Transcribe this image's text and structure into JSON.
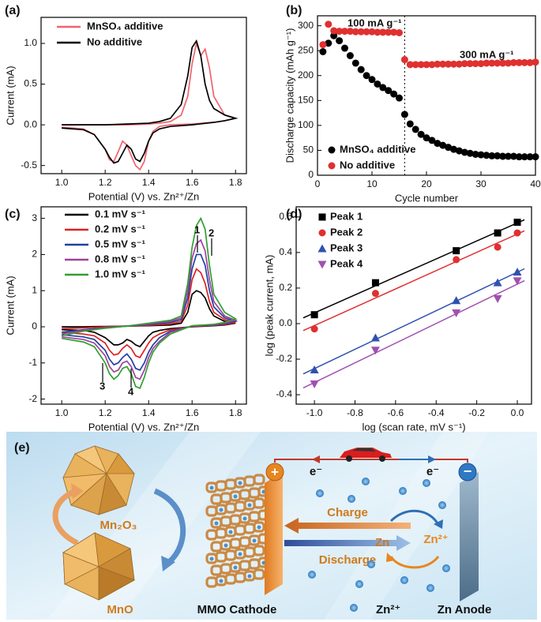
{
  "chart_data": [
    {
      "type": "line",
      "panel_label": "(a)",
      "xlabel": "Potential (V) vs. Zn²⁺/Zn",
      "ylabel": "Current (mA)",
      "xlim": [
        0.905,
        1.85
      ],
      "ylim": [
        -0.6,
        1.32
      ],
      "xticks": [
        {
          "value": 1.0,
          "label": "1.0"
        },
        1.2,
        1.4,
        1.6,
        1.8
      ],
      "yticks": [
        -0.5,
        {
          "value": 0,
          "label": "0.0"
        },
        0.5,
        {
          "value": 1,
          "label": "1.0"
        }
      ],
      "x": [
        1.0,
        1.1,
        1.2,
        1.3,
        1.4,
        1.45,
        1.5,
        1.55,
        1.58,
        1.6,
        1.62,
        1.64,
        1.66,
        1.68,
        1.7,
        1.75,
        1.8,
        1.75,
        1.7,
        1.6,
        1.5,
        1.45,
        1.42,
        1.4,
        1.38,
        1.36,
        1.34,
        1.32,
        1.3,
        1.28,
        1.26,
        1.24,
        1.22,
        1.2,
        1.15,
        1.1,
        1.0
      ],
      "series": [
        {
          "name": "MnSO₄ additive",
          "color": "#f0646e",
          "values": [
            0.0,
            0.0,
            0.0,
            0.0,
            0.01,
            0.02,
            0.04,
            0.12,
            0.35,
            0.75,
            1.0,
            0.85,
            0.93,
            0.7,
            0.35,
            0.12,
            0.08,
            0.05,
            0.03,
            0.01,
            0.0,
            -0.02,
            -0.08,
            -0.2,
            -0.45,
            -0.55,
            -0.5,
            -0.38,
            -0.25,
            -0.2,
            -0.33,
            -0.45,
            -0.43,
            -0.3,
            -0.12,
            -0.05,
            -0.03
          ]
        },
        {
          "name": "No additive",
          "color": "#000000",
          "values": [
            0.0,
            0.0,
            0.0,
            0.01,
            0.02,
            0.04,
            0.08,
            0.25,
            0.6,
            0.95,
            1.03,
            0.85,
            0.5,
            0.3,
            0.2,
            0.12,
            0.08,
            0.05,
            0.03,
            0.0,
            -0.02,
            -0.05,
            -0.1,
            -0.2,
            -0.35,
            -0.45,
            -0.42,
            -0.3,
            -0.25,
            -0.35,
            -0.45,
            -0.47,
            -0.4,
            -0.3,
            -0.12,
            -0.06,
            -0.04
          ]
        }
      ]
    },
    {
      "type": "scatter",
      "panel_label": "(b)",
      "xlabel": "Cycle number",
      "ylabel": "Discharge capacity (mAh g⁻¹)",
      "xlim": [
        0,
        40
      ],
      "ylim": [
        0,
        320
      ],
      "xticks": [
        0,
        10,
        20,
        30,
        40
      ],
      "yticks": [
        0,
        50,
        100,
        150,
        200,
        250,
        300
      ],
      "annotations": [
        "100 mA g⁻¹",
        "300 mA g⁻¹"
      ],
      "x": [
        1,
        2,
        3,
        4,
        5,
        6,
        7,
        8,
        9,
        10,
        11,
        12,
        13,
        14,
        15,
        16,
        17,
        18,
        19,
        20,
        21,
        22,
        23,
        24,
        25,
        26,
        27,
        28,
        29,
        30,
        31,
        32,
        33,
        34,
        35,
        36,
        37,
        38,
        39,
        40
      ],
      "series": [
        {
          "name": "MnSO₄ additive",
          "color": "#000000",
          "values": [
            248,
            265,
            280,
            270,
            255,
            240,
            225,
            212,
            200,
            192,
            183,
            176,
            170,
            163,
            155,
            122,
            103,
            92,
            82,
            75,
            70,
            64,
            60,
            56,
            52,
            49,
            46,
            44,
            42,
            41,
            40,
            39,
            39,
            38,
            38,
            38,
            37,
            37,
            37,
            37
          ]
        },
        {
          "name": "No additive",
          "color": "#e03030",
          "values": [
            262,
            303,
            290,
            289,
            289,
            289,
            288,
            288,
            288,
            288,
            287,
            287,
            287,
            287,
            286,
            232,
            222,
            222,
            222,
            222,
            222,
            223,
            223,
            223,
            223,
            223,
            224,
            224,
            224,
            224,
            225,
            225,
            225,
            225,
            225,
            226,
            226,
            226,
            226,
            227
          ]
        }
      ]
    },
    {
      "type": "line",
      "panel_label": "(c)",
      "xlabel": "Potential (V) vs. Zn²⁺/Zn",
      "ylabel": "Current (mA)",
      "xlim": [
        0.905,
        1.85
      ],
      "ylim": [
        -2.14,
        3.32
      ],
      "xticks": [
        {
          "value": 1.0,
          "label": "1.0"
        },
        1.2,
        1.4,
        1.6,
        1.8
      ],
      "yticks": [
        -2,
        -1,
        0,
        1,
        2,
        3
      ],
      "annotations": [
        "1",
        "2",
        "3",
        "4"
      ],
      "x": [
        1.0,
        1.1,
        1.2,
        1.3,
        1.4,
        1.5,
        1.55,
        1.58,
        1.6,
        1.62,
        1.64,
        1.66,
        1.68,
        1.7,
        1.75,
        1.8,
        1.75,
        1.7,
        1.6,
        1.5,
        1.45,
        1.42,
        1.4,
        1.38,
        1.36,
        1.34,
        1.32,
        1.3,
        1.28,
        1.26,
        1.24,
        1.22,
        1.2,
        1.15,
        1.1,
        1.0
      ],
      "series": [
        {
          "name": "0.1 mV s⁻¹",
          "color": "#000000",
          "values": [
            0,
            0,
            0.01,
            0.02,
            0.03,
            0.05,
            0.1,
            0.4,
            0.9,
            1.0,
            0.95,
            0.8,
            0.5,
            0.3,
            0.15,
            0.1,
            0.05,
            0.03,
            0.0,
            -0.05,
            -0.1,
            -0.15,
            -0.25,
            -0.4,
            -0.55,
            -0.5,
            -0.4,
            -0.35,
            -0.45,
            -0.5,
            -0.5,
            -0.4,
            -0.3,
            -0.15,
            -0.1,
            -0.08
          ]
        },
        {
          "name": "0.2 mV s⁻¹",
          "color": "#e02020",
          "values": [
            -0.05,
            -0.03,
            0,
            0.02,
            0.04,
            0.08,
            0.15,
            0.6,
            1.3,
            1.6,
            1.5,
            1.2,
            0.7,
            0.4,
            0.2,
            0.12,
            0.06,
            0.04,
            0.01,
            -0.08,
            -0.2,
            -0.3,
            -0.45,
            -0.65,
            -0.85,
            -0.8,
            -0.6,
            -0.5,
            -0.6,
            -0.75,
            -0.78,
            -0.65,
            -0.45,
            -0.25,
            -0.2,
            -0.15
          ]
        },
        {
          "name": "0.5 mV s⁻¹",
          "color": "#2040a0",
          "values": [
            -0.15,
            -0.08,
            -0.02,
            0.02,
            0.06,
            0.12,
            0.2,
            0.8,
            1.6,
            2.0,
            2.0,
            1.7,
            1.0,
            0.55,
            0.25,
            0.15,
            0.08,
            0.05,
            0.02,
            -0.12,
            -0.3,
            -0.5,
            -0.7,
            -1.0,
            -1.2,
            -1.15,
            -0.9,
            -0.75,
            -0.85,
            -1.0,
            -1.05,
            -0.9,
            -0.65,
            -0.35,
            -0.28,
            -0.22
          ]
        },
        {
          "name": "0.8 mV s⁻¹",
          "color": "#a040a0",
          "values": [
            -0.2,
            -0.1,
            -0.03,
            0.02,
            0.08,
            0.15,
            0.25,
            1.0,
            1.9,
            2.3,
            2.4,
            2.1,
            1.3,
            0.7,
            0.3,
            0.18,
            0.1,
            0.06,
            0.02,
            -0.15,
            -0.4,
            -0.6,
            -0.85,
            -1.2,
            -1.45,
            -1.4,
            -1.1,
            -0.95,
            -1.0,
            -1.2,
            -1.25,
            -1.1,
            -0.8,
            -0.45,
            -0.35,
            -0.28
          ]
        },
        {
          "name": "1.0 mV s⁻¹",
          "color": "#30a030",
          "values": [
            -0.25,
            -0.12,
            -0.04,
            0.02,
            0.1,
            0.18,
            0.3,
            1.2,
            2.2,
            2.8,
            3.0,
            2.7,
            1.7,
            0.9,
            0.4,
            0.22,
            0.12,
            0.07,
            0.03,
            -0.2,
            -0.45,
            -0.7,
            -1.0,
            -1.4,
            -1.7,
            -1.65,
            -1.3,
            -1.1,
            -1.15,
            -1.35,
            -1.45,
            -1.3,
            -1.0,
            -0.55,
            -0.42,
            -0.32
          ]
        }
      ]
    },
    {
      "type": "scatter",
      "panel_label": "(d)",
      "xlabel": "log (scan rate, mV s⁻¹)",
      "ylabel": "log (peak current, mA)",
      "xlim": [
        -1.09,
        0.07
      ],
      "ylim": [
        -0.453,
        0.657
      ],
      "fit": true,
      "xticks": [
        {
          "value": -1,
          "label": "-1.0"
        },
        -0.8,
        -0.6,
        -0.4,
        -0.2,
        {
          "value": 0,
          "label": "0.0"
        }
      ],
      "yticks": [
        -0.4,
        -0.2,
        {
          "value": 0,
          "label": "0.0"
        },
        0.2,
        0.4,
        0.6
      ],
      "x": [
        -1.0,
        -0.699,
        -0.301,
        -0.097,
        0.0
      ],
      "series": [
        {
          "name": "Peak 1",
          "color": "#000000",
          "marker": "square",
          "values": [
            0.05,
            0.23,
            0.41,
            0.51,
            0.57
          ]
        },
        {
          "name": "Peak 2",
          "color": "#e03030",
          "marker": "circle",
          "values": [
            -0.03,
            0.17,
            0.36,
            0.43,
            0.51
          ]
        },
        {
          "name": "Peak 3",
          "color": "#3050b0",
          "marker": "triangle-up",
          "values": [
            -0.26,
            -0.08,
            0.13,
            0.23,
            0.29
          ]
        },
        {
          "name": "Peak 4",
          "color": "#a050b0",
          "marker": "triangle-down",
          "values": [
            -0.34,
            -0.15,
            0.06,
            0.14,
            0.24
          ]
        }
      ]
    }
  ],
  "schematic": {
    "panel_label": "(e)",
    "mn2o3": "Mn₂O₃",
    "mno": "MnO",
    "electron_left": "e⁻",
    "electron_right": "e⁻",
    "positive": "+",
    "negative": "−",
    "charge": "Charge",
    "discharge": "Discharge",
    "zn": "Zn",
    "zn_ion": "Zn²⁺",
    "cathode": "MMO Cathode",
    "ion_legend": "Zn²⁺",
    "anode": "Zn Anode"
  }
}
